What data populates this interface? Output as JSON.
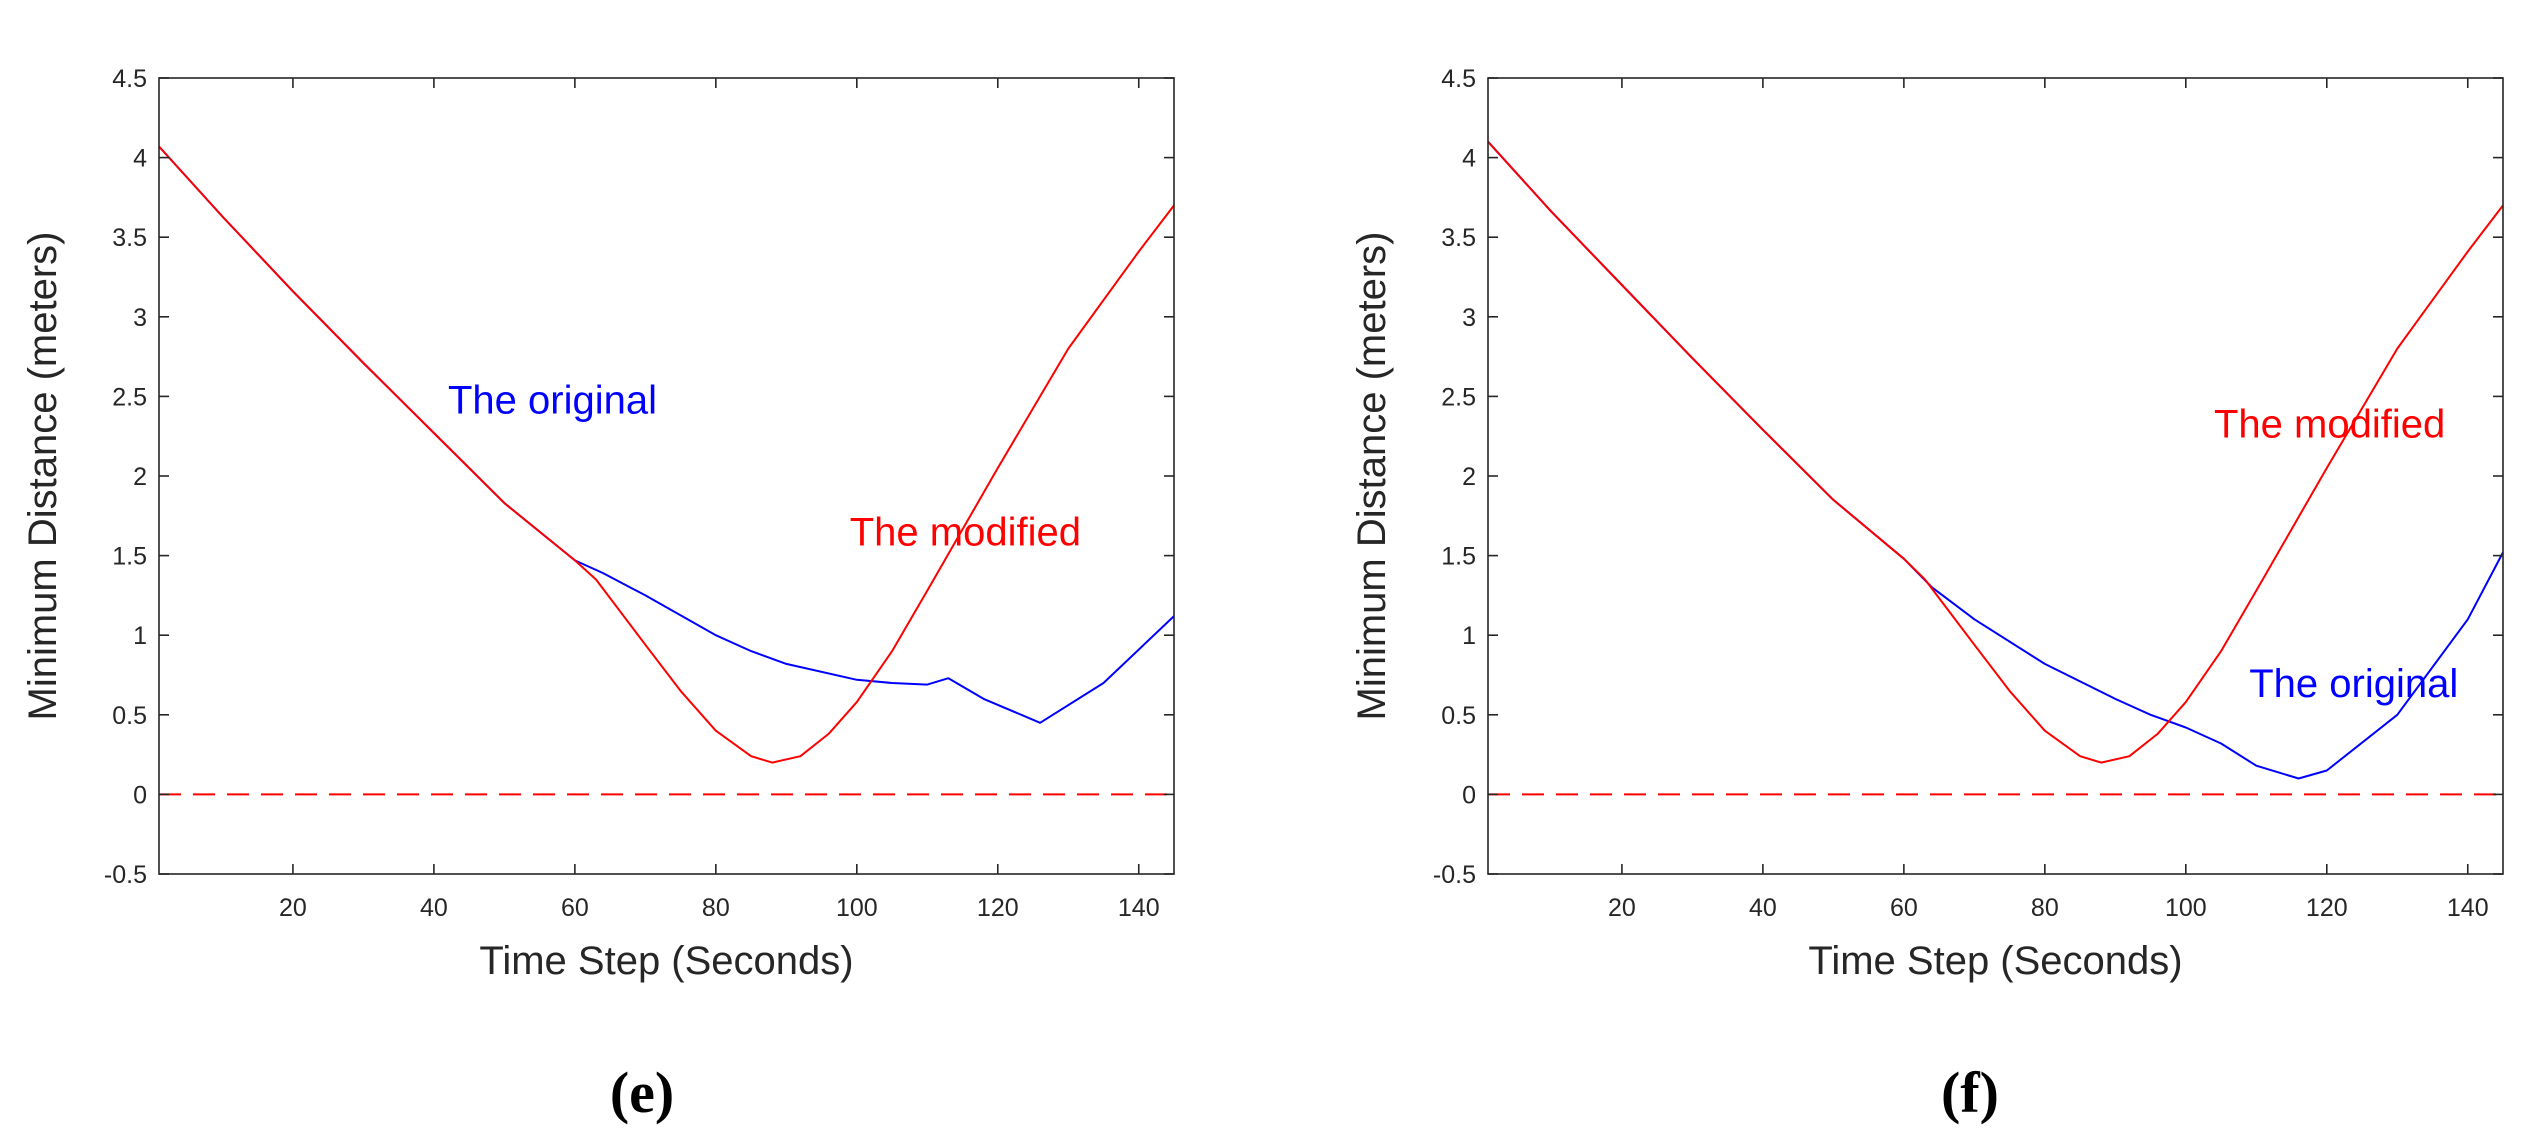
{
  "chart_data": [
    {
      "type": "line",
      "panel_label": "(e)",
      "xlabel": "Time Step (Seconds)",
      "ylabel": "Minimum Distance (meters)",
      "xlim": [
        1,
        145
      ],
      "ylim": [
        -0.5,
        4.5
      ],
      "xticks": [
        20,
        40,
        60,
        80,
        100,
        120,
        140
      ],
      "yticks": [
        -0.5,
        0,
        0.5,
        1,
        1.5,
        2,
        2.5,
        3,
        3.5,
        4,
        4.5
      ],
      "grid": false,
      "series": [
        {
          "name": "The original",
          "color": "#0000ff",
          "x": [
            1,
            10,
            20,
            30,
            40,
            50,
            60,
            64,
            70,
            80,
            85,
            90,
            100,
            105,
            110,
            113,
            118,
            126,
            135,
            145
          ],
          "y": [
            4.07,
            3.63,
            3.16,
            2.71,
            2.27,
            1.83,
            1.47,
            1.39,
            1.25,
            1.0,
            0.9,
            0.82,
            0.72,
            0.7,
            0.69,
            0.73,
            0.6,
            0.45,
            0.7,
            1.12
          ]
        },
        {
          "name": "The modified",
          "color": "#ff0000",
          "x": [
            1,
            10,
            20,
            30,
            40,
            50,
            60,
            63,
            70,
            75,
            80,
            85,
            88,
            92,
            96,
            100,
            105,
            110,
            120,
            130,
            140,
            145
          ],
          "y": [
            4.07,
            3.63,
            3.16,
            2.71,
            2.27,
            1.83,
            1.47,
            1.35,
            0.94,
            0.65,
            0.4,
            0.24,
            0.2,
            0.24,
            0.38,
            0.58,
            0.9,
            1.28,
            2.05,
            2.8,
            3.41,
            3.7
          ]
        },
        {
          "name": "zero",
          "color": "#ff0000",
          "dashed": true,
          "x": [
            1,
            145
          ],
          "y": [
            0,
            0
          ]
        }
      ],
      "annotations": [
        {
          "text": "The original",
          "color": "#0000ff",
          "x": 42,
          "y": 2.48
        },
        {
          "text": "The modified",
          "color": "#ff0000",
          "x": 99,
          "y": 1.65
        }
      ]
    },
    {
      "type": "line",
      "panel_label": "(f)",
      "xlabel": "Time Step (Seconds)",
      "ylabel": "Minimum Distance (meters)",
      "xlim": [
        1,
        145
      ],
      "ylim": [
        -0.5,
        4.5
      ],
      "xticks": [
        20,
        40,
        60,
        80,
        100,
        120,
        140
      ],
      "yticks": [
        -0.5,
        0,
        0.5,
        1,
        1.5,
        2,
        2.5,
        3,
        3.5,
        4,
        4.5
      ],
      "grid": false,
      "series": [
        {
          "name": "The original",
          "color": "#0000ff",
          "x": [
            1,
            10,
            20,
            30,
            40,
            50,
            60,
            64,
            70,
            80,
            90,
            95,
            100,
            105,
            110,
            116,
            120,
            130,
            140,
            145
          ],
          "y": [
            4.1,
            3.66,
            3.2,
            2.74,
            2.29,
            1.85,
            1.48,
            1.3,
            1.1,
            0.82,
            0.6,
            0.5,
            0.42,
            0.32,
            0.18,
            0.1,
            0.15,
            0.5,
            1.1,
            1.52
          ]
        },
        {
          "name": "The modified",
          "color": "#ff0000",
          "x": [
            1,
            10,
            20,
            30,
            40,
            50,
            60,
            63,
            70,
            75,
            80,
            85,
            88,
            92,
            96,
            100,
            105,
            110,
            120,
            130,
            140,
            145
          ],
          "y": [
            4.1,
            3.66,
            3.2,
            2.74,
            2.29,
            1.85,
            1.48,
            1.35,
            0.94,
            0.65,
            0.4,
            0.24,
            0.2,
            0.24,
            0.38,
            0.58,
            0.9,
            1.28,
            2.05,
            2.8,
            3.41,
            3.7
          ]
        },
        {
          "name": "zero",
          "color": "#ff0000",
          "dashed": true,
          "x": [
            1,
            145
          ],
          "y": [
            0,
            0
          ]
        }
      ],
      "annotations": [
        {
          "text": "The modified",
          "color": "#ff0000",
          "x": 104,
          "y": 2.33
        },
        {
          "text": "The original",
          "color": "#0000ff",
          "x": 109,
          "y": 0.7
        }
      ]
    }
  ]
}
